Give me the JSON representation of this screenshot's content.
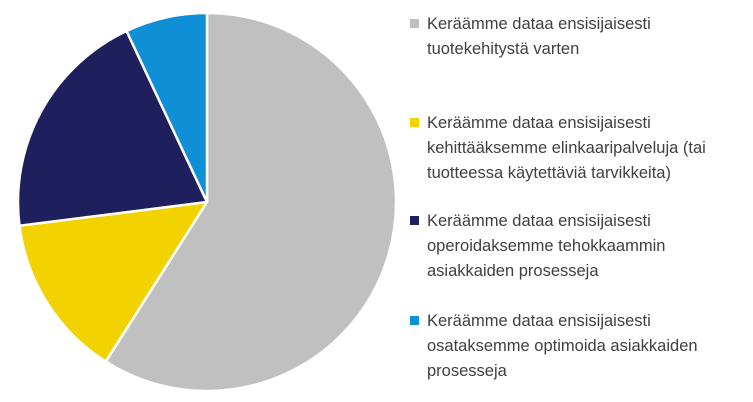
{
  "chart_data": {
    "type": "pie",
    "start_angle_deg": 0,
    "direction": "clockwise",
    "legend_position": "right",
    "slices": [
      {
        "label": "Keräämme dataa ensisijaisesti tuotekehitystä varten",
        "value": 59,
        "color": "#c0c0c0"
      },
      {
        "label": "Keräämme dataa ensisijaisesti kehittääksemme elinkaaripalveluja (tai tuotteessa käytettäviä tarvikkeita)",
        "value": 14,
        "color": "#f2d200"
      },
      {
        "label": "Keräämme dataa ensisijaisesti operoidaksemme tehokkaammin asiakkaiden prosesseja",
        "value": 20,
        "color": "#1e1f5c"
      },
      {
        "label": "Keräämme dataa ensisijaisesti osataksemme optimoida asiakkaiden prosesseja",
        "value": 7,
        "color": "#0e8fd6"
      }
    ]
  },
  "legend": {
    "items": [
      {
        "text": "Keräämme dataa ensisijaisesti\ntuotekehitystä varten"
      },
      {
        "text": "Keräämme dataa ensisijaisesti\nkehittääksemme elinkaaripalveluja (tai\ntuotteessa käytettäviä tarvikkeita)"
      },
      {
        "text": "Keräämme dataa ensisijaisesti\noperoidaksemme tehokkaammin\nasiakkaiden prosesseja"
      },
      {
        "text": "Keräämme dataa ensisijaisesti\nosataksemme optimoida asiakkaiden\nprosesseja"
      }
    ]
  }
}
